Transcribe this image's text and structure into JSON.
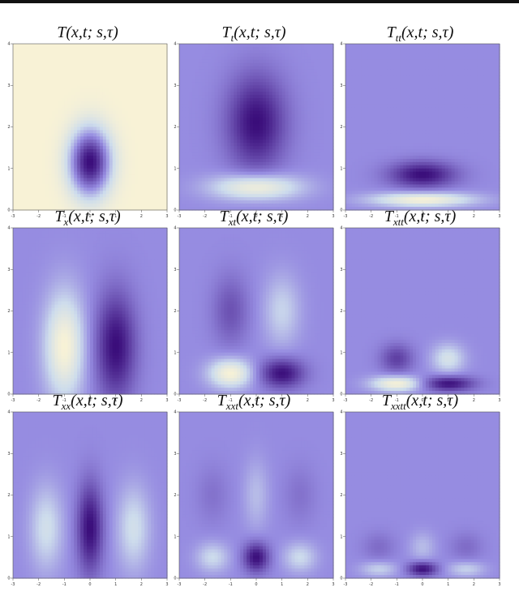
{
  "chart_data": [
    {
      "type": "heatmap",
      "title": "T(x,t; s,τ)",
      "title_base": "T",
      "title_sub": "",
      "title_args": "(x,t; s,τ)",
      "xlim": [
        -3,
        3
      ],
      "ylim": [
        0,
        4
      ],
      "x_ticks": [
        "-3",
        "-2",
        "-1",
        "0",
        "1",
        "2",
        "3"
      ],
      "y_ticks": [
        "0",
        "1",
        "2",
        "3",
        "4"
      ],
      "blobs": [
        {
          "x": 0,
          "y": 1.15,
          "sx": 0.55,
          "sy": 0.55,
          "sign": -1,
          "amp": 1.0
        }
      ],
      "colors": {
        "low": "#3a0d7a",
        "mid": "#f7f1dc",
        "high": "#f2eedb"
      }
    },
    {
      "type": "heatmap",
      "title": "Tt(x,t; s,τ)",
      "title_base": "T",
      "title_sub": "t",
      "title_args": "(x,t; s,τ)",
      "xlim": [
        -3,
        3
      ],
      "ylim": [
        0,
        4
      ],
      "x_ticks": [
        "-3",
        "-2",
        "-1",
        "0",
        "1",
        "2",
        "3"
      ],
      "y_ticks": [
        "0",
        "1",
        "2",
        "3",
        "4"
      ],
      "blobs": [
        {
          "x": 0,
          "y": 2.1,
          "sx": 0.8,
          "sy": 0.8,
          "sign": -1,
          "amp": 1.0
        },
        {
          "x": 0,
          "y": 0.55,
          "sx": 1.2,
          "sy": 0.22,
          "sign": 1,
          "amp": 1.0
        }
      ]
    },
    {
      "type": "heatmap",
      "title": "Ttt(x,t; s,τ)",
      "title_base": "T",
      "title_sub": "tt",
      "title_args": "(x,t; s,τ)",
      "xlim": [
        -3,
        3
      ],
      "ylim": [
        0,
        4
      ],
      "x_ticks": [
        "-3",
        "-2",
        "-1",
        "0",
        "1",
        "2",
        "3"
      ],
      "y_ticks": [
        "0",
        "1",
        "2",
        "3",
        "4"
      ],
      "blobs": [
        {
          "x": 0,
          "y": 0.85,
          "sx": 0.9,
          "sy": 0.22,
          "sign": -1,
          "amp": 1.0
        },
        {
          "x": 0,
          "y": 0.25,
          "sx": 1.4,
          "sy": 0.12,
          "sign": 1,
          "amp": 1.0
        }
      ]
    },
    {
      "type": "heatmap",
      "title": "Tx(x,t; s,τ)",
      "title_base": "T",
      "title_sub": "x",
      "title_args": "(x,t; s,τ)",
      "xlim": [
        -3,
        3
      ],
      "ylim": [
        0,
        4
      ],
      "x_ticks": [
        "-3",
        "-2",
        "-1",
        "0",
        "1",
        "2",
        "3"
      ],
      "y_ticks": [
        "0",
        "1",
        "2",
        "3",
        "4"
      ],
      "blobs": [
        {
          "x": -1,
          "y": 1.15,
          "sx": 0.55,
          "sy": 0.9,
          "sign": 1,
          "amp": 1.0
        },
        {
          "x": 1,
          "y": 1.15,
          "sx": 0.55,
          "sy": 0.9,
          "sign": -1,
          "amp": 1.0
        }
      ]
    },
    {
      "type": "heatmap",
      "title": "Txt(x,t; s,τ)",
      "title_base": "T",
      "title_sub": "xt",
      "title_args": "(x,t; s,τ)",
      "xlim": [
        -3,
        3
      ],
      "ylim": [
        0,
        4
      ],
      "x_ticks": [
        "-3",
        "-2",
        "-1",
        "0",
        "1",
        "2",
        "3"
      ],
      "y_ticks": [
        "0",
        "1",
        "2",
        "3",
        "4"
      ],
      "blobs": [
        {
          "x": -1,
          "y": 2.0,
          "sx": 0.5,
          "sy": 0.6,
          "sign": -1,
          "amp": 0.45
        },
        {
          "x": 1,
          "y": 2.0,
          "sx": 0.5,
          "sy": 0.6,
          "sign": 1,
          "amp": 0.45
        },
        {
          "x": -1,
          "y": 0.5,
          "sx": 0.6,
          "sy": 0.25,
          "sign": 1,
          "amp": 1.0
        },
        {
          "x": 1,
          "y": 0.5,
          "sx": 0.6,
          "sy": 0.25,
          "sign": -1,
          "amp": 1.0
        }
      ]
    },
    {
      "type": "heatmap",
      "title": "Txtt(x,t; s,τ)",
      "title_base": "T",
      "title_sub": "xtt",
      "title_args": "(x,t; s,τ)",
      "xlim": [
        -3,
        3
      ],
      "ylim": [
        0,
        4
      ],
      "x_ticks": [
        "-3",
        "-2",
        "-1",
        "0",
        "1",
        "2",
        "3"
      ],
      "y_ticks": [
        "0",
        "1",
        "2",
        "3",
        "4"
      ],
      "blobs": [
        {
          "x": -1,
          "y": 0.85,
          "sx": 0.45,
          "sy": 0.25,
          "sign": -1,
          "amp": 0.6
        },
        {
          "x": 1,
          "y": 0.85,
          "sx": 0.45,
          "sy": 0.25,
          "sign": 1,
          "amp": 0.6
        },
        {
          "x": -1,
          "y": 0.25,
          "sx": 0.7,
          "sy": 0.13,
          "sign": 1,
          "amp": 1.0
        },
        {
          "x": 1,
          "y": 0.25,
          "sx": 0.7,
          "sy": 0.13,
          "sign": -1,
          "amp": 1.0
        }
      ]
    },
    {
      "type": "heatmap",
      "title": "Txx(x,t; s,τ)",
      "title_base": "T",
      "title_sub": "xx",
      "title_args": "(x,t; s,τ)",
      "xlim": [
        -3,
        3
      ],
      "ylim": [
        0,
        4
      ],
      "x_ticks": [
        "-3",
        "-2",
        "-1",
        "0",
        "1",
        "2",
        "3"
      ],
      "y_ticks": [
        "0",
        "1",
        "2",
        "3",
        "4"
      ],
      "blobs": [
        {
          "x": 0,
          "y": 1.2,
          "sx": 0.35,
          "sy": 0.75,
          "sign": -1,
          "amp": 1.0
        },
        {
          "x": -1.7,
          "y": 1.2,
          "sx": 0.45,
          "sy": 0.7,
          "sign": 1,
          "amp": 0.55
        },
        {
          "x": 1.7,
          "y": 1.2,
          "sx": 0.45,
          "sy": 0.7,
          "sign": 1,
          "amp": 0.55
        }
      ]
    },
    {
      "type": "heatmap",
      "title": "Txxt(x,t; s,τ)",
      "title_base": "T",
      "title_sub": "xxt",
      "title_args": "(x,t; s,τ)",
      "xlim": [
        -3,
        3
      ],
      "ylim": [
        0,
        4
      ],
      "x_ticks": [
        "-3",
        "-2",
        "-1",
        "0",
        "1",
        "2",
        "3"
      ],
      "y_ticks": [
        "0",
        "1",
        "2",
        "3",
        "4"
      ],
      "blobs": [
        {
          "x": 0,
          "y": 0.5,
          "sx": 0.35,
          "sy": 0.25,
          "sign": -1,
          "amp": 1.0
        },
        {
          "x": -1.7,
          "y": 0.5,
          "sx": 0.45,
          "sy": 0.25,
          "sign": 1,
          "amp": 0.5
        },
        {
          "x": 1.7,
          "y": 0.5,
          "sx": 0.45,
          "sy": 0.25,
          "sign": 1,
          "amp": 0.5
        },
        {
          "x": 0,
          "y": 2.0,
          "sx": 0.35,
          "sy": 0.6,
          "sign": 1,
          "amp": 0.3
        },
        {
          "x": -1.7,
          "y": 2.0,
          "sx": 0.45,
          "sy": 0.5,
          "sign": -1,
          "amp": 0.2
        },
        {
          "x": 1.7,
          "y": 2.0,
          "sx": 0.45,
          "sy": 0.5,
          "sign": -1,
          "amp": 0.2
        }
      ]
    },
    {
      "type": "heatmap",
      "title": "Txxtt(x,t; s,τ)",
      "title_base": "T",
      "title_sub": "xxtt",
      "title_args": "(x,t; s,τ)",
      "xlim": [
        -3,
        3
      ],
      "ylim": [
        0,
        4
      ],
      "x_ticks": [
        "-3",
        "-2",
        "-1",
        "0",
        "1",
        "2",
        "3"
      ],
      "y_ticks": [
        "0",
        "1",
        "2",
        "3",
        "4"
      ],
      "blobs": [
        {
          "x": 0,
          "y": 0.22,
          "sx": 0.4,
          "sy": 0.12,
          "sign": -1,
          "amp": 1.0
        },
        {
          "x": -1.7,
          "y": 0.22,
          "sx": 0.5,
          "sy": 0.13,
          "sign": 1,
          "amp": 0.45
        },
        {
          "x": 1.7,
          "y": 0.22,
          "sx": 0.5,
          "sy": 0.13,
          "sign": 1,
          "amp": 0.45
        },
        {
          "x": 0,
          "y": 0.75,
          "sx": 0.35,
          "sy": 0.25,
          "sign": 1,
          "amp": 0.3
        },
        {
          "x": -1.7,
          "y": 0.75,
          "sx": 0.45,
          "sy": 0.25,
          "sign": -1,
          "amp": 0.25
        },
        {
          "x": 1.7,
          "y": 0.75,
          "sx": 0.45,
          "sy": 0.25,
          "sign": -1,
          "amp": 0.25
        }
      ]
    }
  ],
  "colors": {
    "dark": "#3a0d7a",
    "purple": "#8f86e0",
    "light_blue": "#cfdcea",
    "cream": "#f7f1d6"
  }
}
